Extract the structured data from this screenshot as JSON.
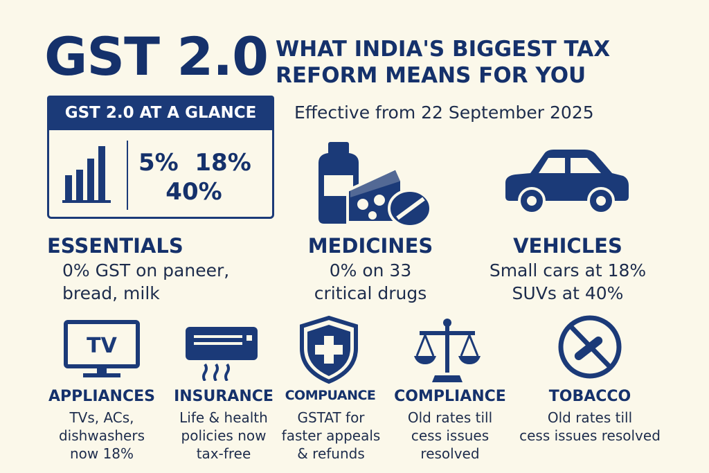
{
  "header": {
    "title": "GST 2.0",
    "subtitle_line1": "WHAT INDIA'S BIGGEST TAX",
    "subtitle_line2": "REFORM MEANS FOR YOU",
    "effective": "Effective from 22 September 2025"
  },
  "glance": {
    "heading": "GST 2.0 AT A GLANCE",
    "rates_line1": "5%  18%",
    "rates_line2": "40%"
  },
  "categories_top": [
    {
      "title": "ESSENTIALS",
      "line1": "0% GST on paneer,",
      "line2": "bread, milk"
    },
    {
      "title": "MEDICINES",
      "line1": "0% on 33",
      "line2": "critical drugs"
    },
    {
      "title": "VEHICLES",
      "line1": "Small cars at 18%",
      "line2": "SUVs at 40%"
    }
  ],
  "categories_bottom": [
    {
      "title": "APPLIANCES",
      "line1": "TVs, ACs,",
      "line2": "dishwashers",
      "line3": "now 18%"
    },
    {
      "title": "INSURANCE",
      "line1": "Life & health",
      "line2": "policies now",
      "line3": "tax-free"
    },
    {
      "title": "COMPUANCE",
      "line1": "GSTAT for",
      "line2": "faster appeals",
      "line3": "& refunds"
    },
    {
      "title": "COMPLIANCE",
      "line1": "Old rates till",
      "line2": "cess issues",
      "line3": "resolved"
    },
    {
      "title": "TOBACCO",
      "line1": "Old rates till",
      "line2": "cess issues resolved"
    }
  ],
  "icons": {
    "tv_label": "TV",
    "color_primary": "#1b3a78"
  }
}
